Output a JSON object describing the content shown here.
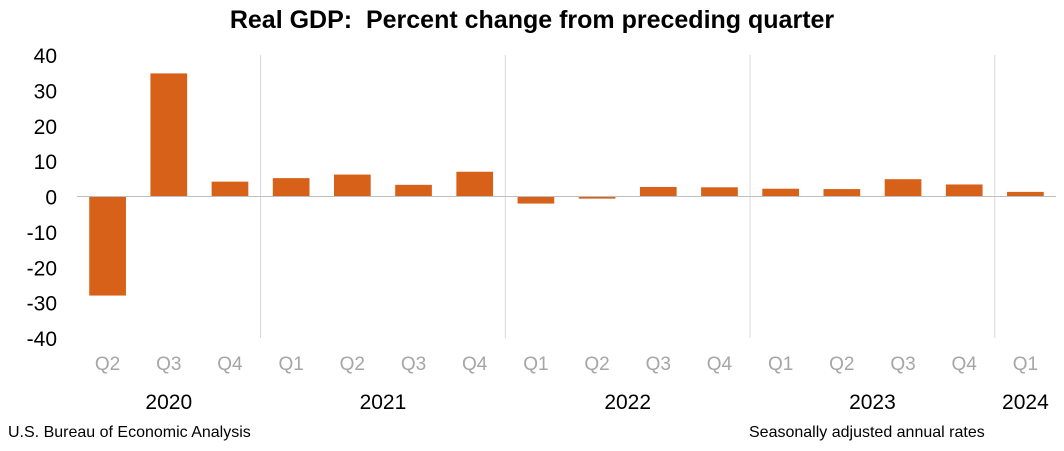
{
  "chart_data": {
    "type": "bar",
    "title": "Real GDP:  Percent change from preceding quarter",
    "categories": [
      "Q2",
      "Q3",
      "Q4",
      "Q1",
      "Q2",
      "Q3",
      "Q4",
      "Q1",
      "Q2",
      "Q3",
      "Q4",
      "Q1",
      "Q2",
      "Q3",
      "Q4",
      "Q1"
    ],
    "years": [
      {
        "label": "2020",
        "start": 0,
        "end": 2
      },
      {
        "label": "2021",
        "start": 3,
        "end": 6
      },
      {
        "label": "2022",
        "start": 7,
        "end": 10
      },
      {
        "label": "2023",
        "start": 11,
        "end": 14
      },
      {
        "label": "2024",
        "start": 15,
        "end": 15
      }
    ],
    "values": [
      -28.0,
      34.8,
      4.2,
      5.2,
      6.2,
      3.3,
      7.0,
      -2.0,
      -0.6,
      2.7,
      2.6,
      2.2,
      2.1,
      4.9,
      3.4,
      1.3
    ],
    "ylim": [
      -40,
      40
    ],
    "yticks": [
      40,
      30,
      20,
      10,
      0,
      -10,
      -20,
      -30,
      -40
    ],
    "grid": false,
    "bar_color": "#d8611a",
    "tick_label_color": "#a6a6a6"
  },
  "footer": {
    "source": "U.S. Bureau of Economic Analysis",
    "note": "Seasonally adjusted annual rates"
  }
}
